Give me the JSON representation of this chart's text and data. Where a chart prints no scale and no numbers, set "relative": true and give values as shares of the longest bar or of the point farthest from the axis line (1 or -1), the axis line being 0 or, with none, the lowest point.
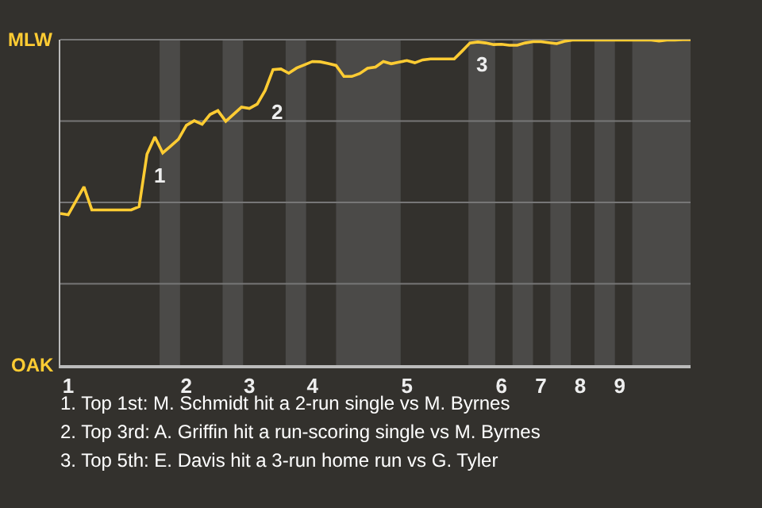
{
  "chart_data": {
    "type": "line",
    "relative": true,
    "categories": [
      null,
      "1",
      null,
      null,
      null,
      null,
      null,
      null,
      null,
      null,
      null,
      null,
      null,
      null,
      null,
      null,
      "2",
      null,
      null,
      null,
      null,
      null,
      null,
      null,
      "3",
      null,
      null,
      null,
      null,
      null,
      null,
      null,
      "4",
      null,
      null,
      null,
      null,
      null,
      null,
      null,
      null,
      null,
      null,
      null,
      "5",
      null,
      null,
      null,
      null,
      null,
      null,
      null,
      null,
      null,
      null,
      null,
      "6",
      null,
      null,
      null,
      null,
      "7",
      null,
      null,
      null,
      null,
      "8",
      null,
      null,
      null,
      null,
      "9",
      null,
      null,
      null,
      null,
      null,
      null,
      null,
      null,
      null
    ],
    "series": [
      {
        "color": "#ffcc33",
        "values": [
          0.466,
          0.462,
          0.505,
          0.548,
          0.477,
          0.477,
          0.477,
          0.477,
          0.477,
          0.477,
          0.487,
          0.648,
          0.701,
          0.652,
          0.673,
          0.694,
          0.737,
          0.751,
          0.74,
          0.77,
          0.782,
          0.749,
          0.771,
          0.793,
          0.789,
          0.802,
          0.844,
          0.908,
          0.91,
          0.897,
          0.913,
          0.923,
          0.933,
          0.932,
          0.927,
          0.921,
          0.887,
          0.887,
          0.896,
          0.912,
          0.916,
          0.933,
          0.926,
          0.931,
          0.936,
          0.929,
          0.938,
          0.941,
          0.941,
          0.941,
          0.941,
          0.965,
          0.99,
          0.993,
          0.99,
          0.985,
          0.986,
          0.983,
          0.983,
          0.99,
          0.994,
          0.994,
          0.991,
          0.988,
          0.995,
          0.999,
          0.999,
          0.999,
          0.999,
          0.999,
          0.999,
          0.999,
          0.999,
          0.999,
          0.999,
          0.999,
          0.996,
          0.999,
          0.999,
          1.0,
          1.0
        ]
      }
    ],
    "grid": "y",
    "marker": "none",
    "line_style": "solid",
    "annotations": [
      "MLW",
      "OAK",
      "1",
      "2",
      "3",
      "1. Top 1st: M. Schmidt hit a 2-run single vs M. Byrnes",
      "2. Top 3rd: A. Griffin hit a run-scoring single vs M. Byrnes",
      "3. Top 5th: E. Davis hit a 3-run home run vs G. Tyler"
    ]
  }
}
